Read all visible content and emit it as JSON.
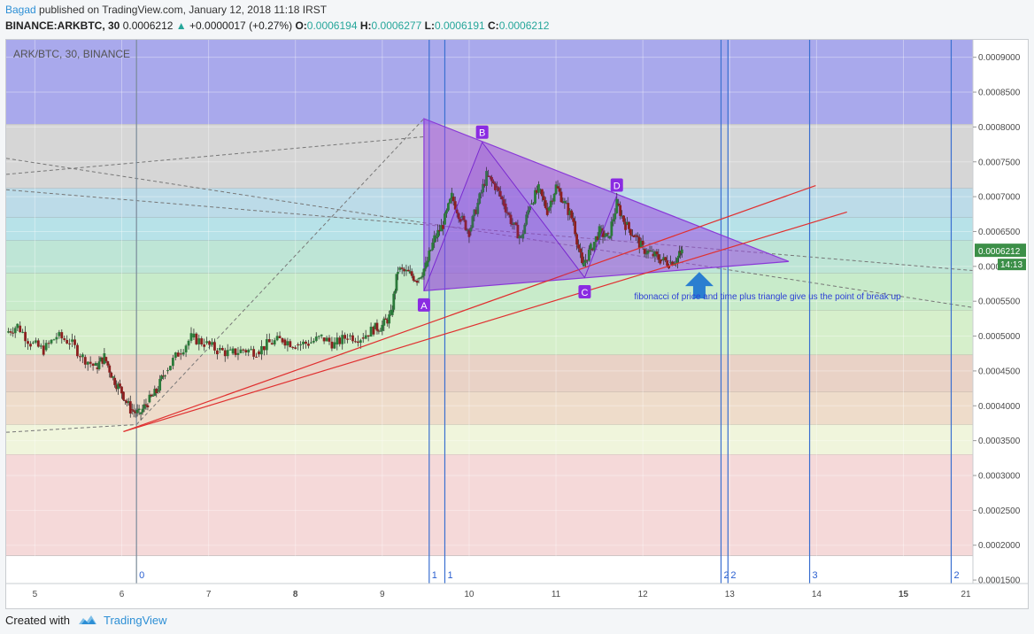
{
  "header": {
    "author": "Bagad",
    "published": " published on TradingView.com, January 12, 2018 11:18 IRST",
    "symbol": "BINANCE:ARKBTC, 30",
    "last": "0.0006212",
    "change": "+0.0000017 (+0.27%)",
    "o_label": "O:",
    "o": "0.0006194",
    "h_label": "H:",
    "h": "0.0006277",
    "l_label": "L:",
    "l": "0.0006191",
    "c_label": "C:",
    "c": "0.0006212"
  },
  "footer": {
    "created_with": "Created with",
    "brand": "TradingView"
  },
  "chart_data": {
    "type": "candlestick",
    "title": "ARK/BTC, 30, BINANCE",
    "x_ticks": [
      {
        "label": "5",
        "pos": 0.0,
        "bold": false
      },
      {
        "label": "6",
        "pos": 1.0,
        "bold": false
      },
      {
        "label": "7",
        "pos": 2.0,
        "bold": false
      },
      {
        "label": "8",
        "pos": 3.0,
        "bold": true
      },
      {
        "label": "9",
        "pos": 4.0,
        "bold": false
      },
      {
        "label": "10",
        "pos": 5.0,
        "bold": false
      },
      {
        "label": "11",
        "pos": 6.0,
        "bold": false
      },
      {
        "label": "12",
        "pos": 7.0,
        "bold": false
      },
      {
        "label": "13",
        "pos": 8.0,
        "bold": false
      },
      {
        "label": "14",
        "pos": 9.0,
        "bold": false
      },
      {
        "label": "15",
        "pos": 10.0,
        "bold": true
      },
      {
        "label": "21",
        "pos": 10.8,
        "bold": false
      }
    ],
    "y_ticks": [
      "0.0009000",
      "0.0008500",
      "0.0008000",
      "0.0007500",
      "0.0007000",
      "0.0006500",
      "0.0006000",
      "0.0005500",
      "0.0005000",
      "0.0004500",
      "0.0004000",
      "0.0003500",
      "0.0003000",
      "0.0002500",
      "0.0002000",
      "0.0001500"
    ],
    "y_range": [
      0.000145,
      0.000925
    ],
    "x_range": [
      -0.33,
      10.8
    ],
    "last_price": "0.0006212",
    "countdown": "14:13",
    "fib_zones": [
      {
        "from": 0.000925,
        "to": 0.000804,
        "color": "#8c8ce6"
      },
      {
        "from": 0.000804,
        "to": 0.000712,
        "color": "#c8c8c8"
      },
      {
        "from": 0.000712,
        "to": 0.00067,
        "color": "#a6cfe0"
      },
      {
        "from": 0.00067,
        "to": 0.000637,
        "color": "#9fd8e0"
      },
      {
        "from": 0.000637,
        "to": 0.00059,
        "color": "#a8dcc8"
      },
      {
        "from": 0.00059,
        "to": 0.000537,
        "color": "#b5e4b8"
      },
      {
        "from": 0.000537,
        "to": 0.000473,
        "color": "#c8eab9"
      },
      {
        "from": 0.000473,
        "to": 0.00042,
        "color": "#e1c3b3"
      },
      {
        "from": 0.00042,
        "to": 0.000373,
        "color": "#e8d0b8"
      },
      {
        "from": 0.000373,
        "to": 0.00033,
        "color": "#ebf2d0"
      },
      {
        "from": 0.00033,
        "to": 0.000185,
        "color": "#f2cccc"
      }
    ],
    "fib_time_lines": [
      {
        "x": 1.17,
        "label": "0",
        "color": "#7a8a99"
      },
      {
        "x": 4.54,
        "label": "1",
        "color": "#3a6fd0"
      },
      {
        "x": 4.72,
        "label": "1",
        "color": "#3a6fd0"
      },
      {
        "x": 7.9,
        "label": "2",
        "color": "#3a6fd0"
      },
      {
        "x": 7.98,
        "label": "2",
        "color": "#3a6fd0"
      },
      {
        "x": 8.92,
        "label": "3",
        "color": "#3a6fd0"
      },
      {
        "x": 10.55,
        "label": "2",
        "color": "#3a6fd0"
      }
    ],
    "triangle": [
      [
        4.48,
        0.000812
      ],
      [
        8.68,
        0.000607
      ],
      [
        4.48,
        0.000565
      ]
    ],
    "abcd_points": [
      {
        "label": "A",
        "x": 4.48,
        "y": 0.000565,
        "lx": 4.48,
        "ly": 0.000544
      },
      {
        "label": "B",
        "x": 5.15,
        "y": 0.000778,
        "lx": 5.15,
        "ly": 0.000792
      },
      {
        "label": "C",
        "x": 6.33,
        "y": 0.000584,
        "lx": 6.33,
        "ly": 0.000563
      },
      {
        "label": "D",
        "x": 6.7,
        "y": 0.000702,
        "lx": 6.7,
        "ly": 0.000716
      }
    ],
    "trend_lines": [
      {
        "x1": 1.02,
        "y1": 0.000363,
        "x2": 8.99,
        "y2": 0.000716,
        "color": "#e03030"
      },
      {
        "x1": 1.02,
        "y1": 0.000363,
        "x2": 9.35,
        "y2": 0.000678,
        "color": "#e03030"
      }
    ],
    "dashed_lines": [
      {
        "x1": -0.33,
        "y1": 0.000362,
        "x2": 1.17,
        "y2": 0.000373
      },
      {
        "x1": 1.17,
        "y1": 0.000373,
        "x2": 4.48,
        "y2": 0.000812
      },
      {
        "x1": -0.33,
        "y1": 0.000732,
        "x2": 4.48,
        "y2": 0.000786
      },
      {
        "x1": -0.33,
        "y1": 0.000755,
        "x2": 10.8,
        "y2": 0.000541
      },
      {
        "x1": -0.33,
        "y1": 0.00071,
        "x2": 10.8,
        "y2": 0.000594
      }
    ],
    "arrow": {
      "x": 7.65,
      "y": 0.000592
    },
    "annotation": "fibonacci of price and time plus triangle give us the point of break up",
    "annotation_pos": {
      "x": 6.9,
      "y": 0.000553
    },
    "price_path": [
      [
        -0.33,
        0.000505
      ],
      [
        -0.2,
        0.000515
      ],
      [
        -0.05,
        0.00049
      ],
      [
        0.1,
        0.00048
      ],
      [
        0.25,
        0.0005
      ],
      [
        0.4,
        0.000492
      ],
      [
        0.55,
        0.00047
      ],
      [
        0.7,
        0.000455
      ],
      [
        0.8,
        0.00047
      ],
      [
        0.9,
        0.00044
      ],
      [
        1.0,
        0.00042
      ],
      [
        1.1,
        0.000395
      ],
      [
        1.2,
        0.000388
      ],
      [
        1.3,
        0.000405
      ],
      [
        1.4,
        0.00042
      ],
      [
        1.5,
        0.00045
      ],
      [
        1.65,
        0.000475
      ],
      [
        1.8,
        0.000498
      ],
      [
        1.95,
        0.00049
      ],
      [
        2.1,
        0.00048
      ],
      [
        2.25,
        0.000475
      ],
      [
        2.4,
        0.00048
      ],
      [
        2.55,
        0.000478
      ],
      [
        2.7,
        0.00049
      ],
      [
        2.85,
        0.000495
      ],
      [
        3.0,
        0.000488
      ],
      [
        3.15,
        0.00049
      ],
      [
        3.3,
        0.000498
      ],
      [
        3.45,
        0.000488
      ],
      [
        3.6,
        0.0005
      ],
      [
        3.75,
        0.000498
      ],
      [
        3.9,
        0.00051
      ],
      [
        4.0,
        0.000515
      ],
      [
        4.1,
        0.00053
      ],
      [
        4.18,
        0.000595
      ],
      [
        4.3,
        0.00059
      ],
      [
        4.4,
        0.000582
      ],
      [
        4.5,
        0.0006
      ],
      [
        4.6,
        0.00064
      ],
      [
        4.7,
        0.00066
      ],
      [
        4.8,
        0.0007
      ],
      [
        4.9,
        0.00067
      ],
      [
        5.0,
        0.00065
      ],
      [
        5.1,
        0.00069
      ],
      [
        5.2,
        0.00073
      ],
      [
        5.3,
        0.000715
      ],
      [
        5.4,
        0.00069
      ],
      [
        5.5,
        0.00066
      ],
      [
        5.6,
        0.00064
      ],
      [
        5.7,
        0.00069
      ],
      [
        5.8,
        0.00071
      ],
      [
        5.9,
        0.00068
      ],
      [
        6.0,
        0.000715
      ],
      [
        6.1,
        0.00069
      ],
      [
        6.2,
        0.000665
      ],
      [
        6.3,
        0.0006
      ],
      [
        6.4,
        0.000625
      ],
      [
        6.5,
        0.00065
      ],
      [
        6.6,
        0.00064
      ],
      [
        6.7,
        0.00069
      ],
      [
        6.8,
        0.00066
      ],
      [
        6.9,
        0.000645
      ],
      [
        7.0,
        0.000625
      ],
      [
        7.1,
        0.000618
      ],
      [
        7.2,
        0.00061
      ],
      [
        7.3,
        0.000605
      ],
      [
        7.4,
        0.000612
      ],
      [
        7.45,
        0.000621
      ]
    ]
  }
}
